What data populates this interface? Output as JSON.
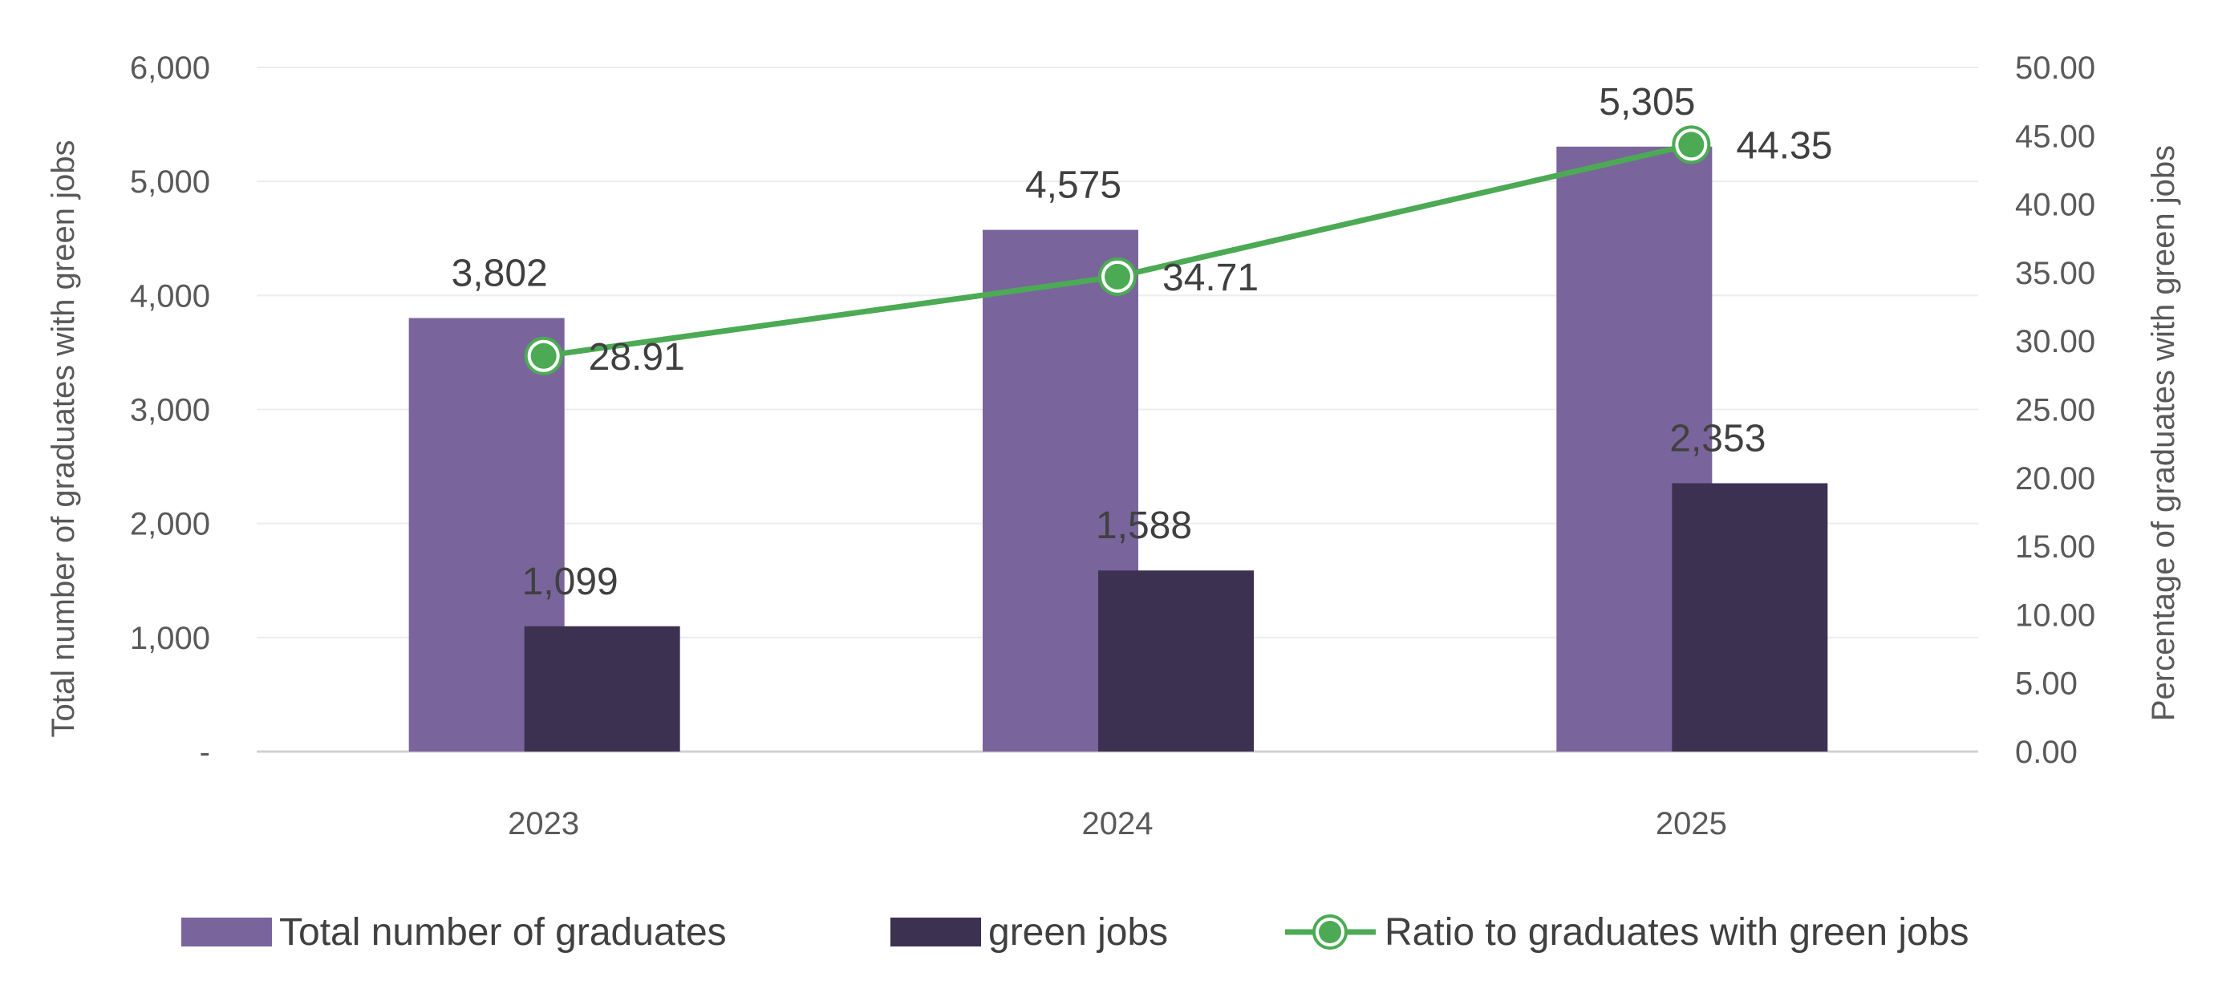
{
  "colors": {
    "total": "#7a649c",
    "green_jobs": "#3d3151",
    "ratio": "#4caa55"
  },
  "chart_data": {
    "type": "bar",
    "categories": [
      "2023",
      "2024",
      "2025"
    ],
    "series": [
      {
        "name": "Total number of graduates",
        "type": "bar",
        "axis": "left",
        "values": [
          3802,
          4575,
          5305
        ],
        "labels": [
          "3,802",
          "4,575",
          "5,305"
        ]
      },
      {
        "name": "green jobs",
        "type": "bar",
        "axis": "left",
        "values": [
          1099,
          1588,
          2353
        ],
        "labels": [
          "1,099",
          "1,588",
          "2,353"
        ]
      },
      {
        "name": "Ratio to graduates with green jobs",
        "type": "line",
        "axis": "right",
        "values": [
          28.91,
          34.71,
          44.35
        ],
        "labels": [
          "28.91",
          "34.71",
          "44.35"
        ]
      }
    ],
    "ylabel": "Total number of graduates with green jobs",
    "y2label": "Percentage of graduates with green jobs",
    "ylim": [
      0,
      6000
    ],
    "y2lim": [
      0,
      50
    ],
    "yticks": [
      0,
      1000,
      2000,
      3000,
      4000,
      5000,
      6000
    ],
    "ytick_labels": [
      "-",
      "1,000",
      "2,000",
      "3,000",
      "4,000",
      "5,000",
      "6,000"
    ],
    "y2ticks": [
      0,
      5,
      10,
      15,
      20,
      25,
      30,
      35,
      40,
      45,
      50
    ],
    "y2tick_labels": [
      "0.00",
      "5.00",
      "10.00",
      "15.00",
      "20.00",
      "25.00",
      "30.00",
      "35.00",
      "40.00",
      "45.00",
      "50.00"
    ],
    "grid": true,
    "legend": "bottom"
  }
}
